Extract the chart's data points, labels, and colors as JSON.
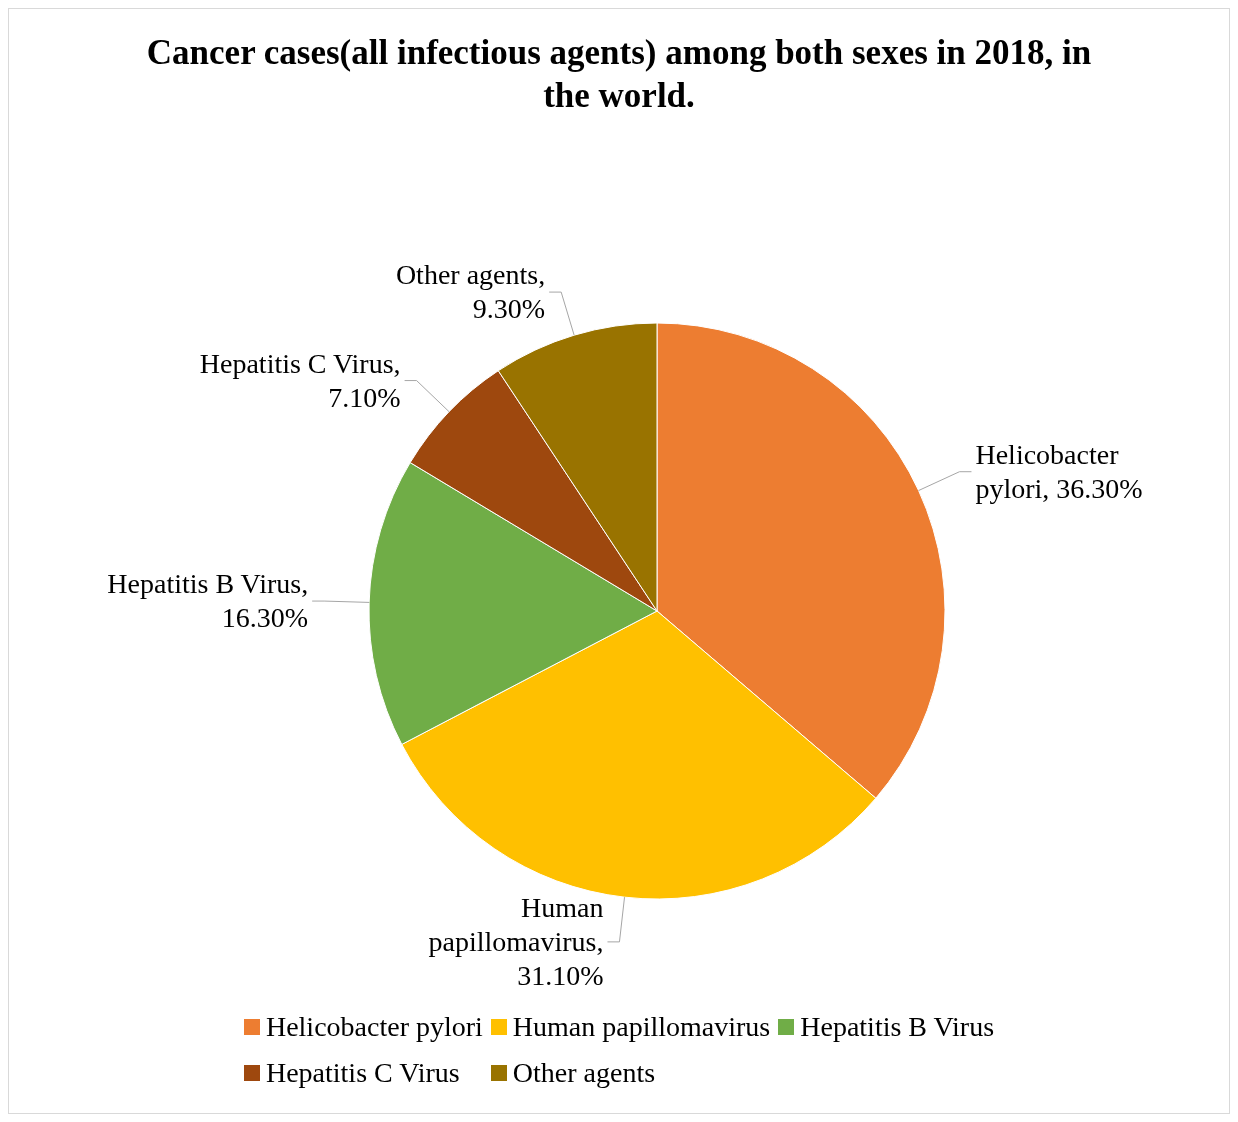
{
  "chart_data": {
    "type": "pie",
    "title": "Cancer cases(all infectious agents) among both sexes in 2018, in the world.",
    "categories": [
      "Helicobacter pylori",
      "Human papillomavirus",
      "Hepatitis B Virus",
      "Hepatitis C Virus",
      "Other agents"
    ],
    "values": [
      36.3,
      31.1,
      16.3,
      7.1,
      9.3
    ],
    "value_labels": [
      "Helicobacter pylori, 36.30%",
      "Human papillomavirus, 31.10%",
      "Hepatitis B Virus, 16.30%",
      "Hepatitis C Virus, 7.10%",
      "Other agents, 9.30%"
    ],
    "colors": [
      "#ed7d31",
      "#ffc000",
      "#70ad47",
      "#9e480e",
      "#997300"
    ],
    "legend": "bottom"
  }
}
